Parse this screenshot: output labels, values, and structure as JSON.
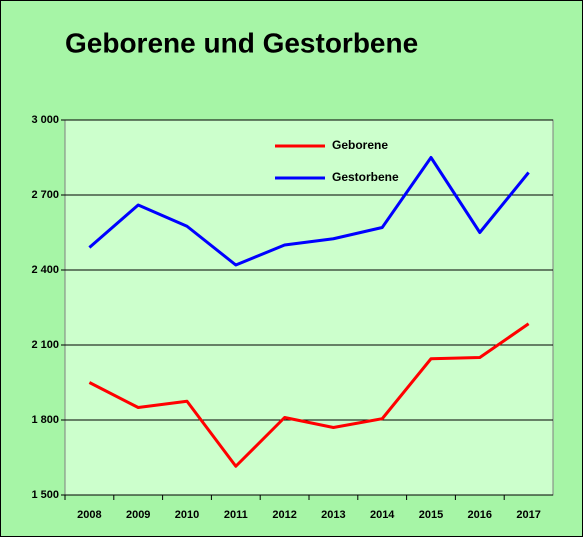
{
  "chart_data": {
    "type": "line",
    "title": "Geborene und Gestorbene",
    "categories": [
      "2008",
      "2009",
      "2010",
      "2011",
      "2012",
      "2013",
      "2014",
      "2015",
      "2016",
      "2017"
    ],
    "series": [
      {
        "name": "Geborene",
        "color": "#ff0000",
        "values": [
          1950,
          1850,
          1875,
          1615,
          1810,
          1770,
          1805,
          2045,
          2050,
          2185
        ]
      },
      {
        "name": "Gestorbene",
        "color": "#0000ff",
        "values": [
          2490,
          2660,
          2575,
          2420,
          2500,
          2525,
          2570,
          2850,
          2550,
          2790
        ]
      }
    ],
    "ylim": [
      1500,
      3000
    ],
    "yticks": [
      {
        "value": 1500,
        "label": "1 500"
      },
      {
        "value": 1800,
        "label": "1 800"
      },
      {
        "value": 2100,
        "label": "2 100"
      },
      {
        "value": 2400,
        "label": "2 400"
      },
      {
        "value": 2700,
        "label": "2 700"
      },
      {
        "value": 3000,
        "label": "3 000"
      }
    ],
    "grid": true,
    "legend": "top"
  }
}
